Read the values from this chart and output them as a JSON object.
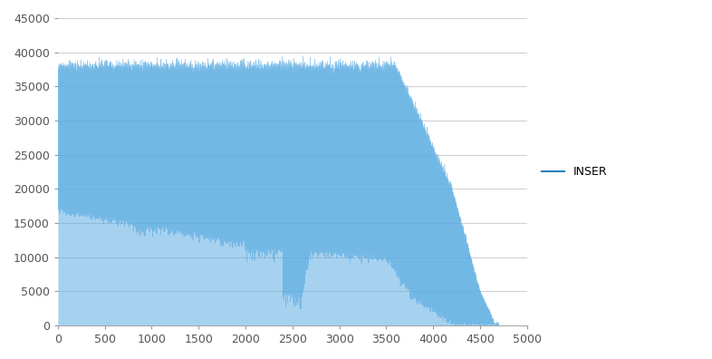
{
  "title": "",
  "xlabel": "",
  "ylabel": "",
  "xlim": [
    0,
    5000
  ],
  "ylim": [
    0,
    45000
  ],
  "yticks": [
    0,
    5000,
    10000,
    15000,
    20000,
    25000,
    30000,
    35000,
    40000,
    45000
  ],
  "xticks": [
    0,
    500,
    1000,
    1500,
    2000,
    2500,
    3000,
    3500,
    4000,
    4500,
    5000
  ],
  "line_color": "#5DADE2",
  "fill_color": "#5DADE2",
  "legend_label": "INSER",
  "legend_line_color": "#2980B9",
  "background_color": "#ffffff",
  "grid_color": "#d0d0d0",
  "n_points": 4700,
  "seed": 42
}
